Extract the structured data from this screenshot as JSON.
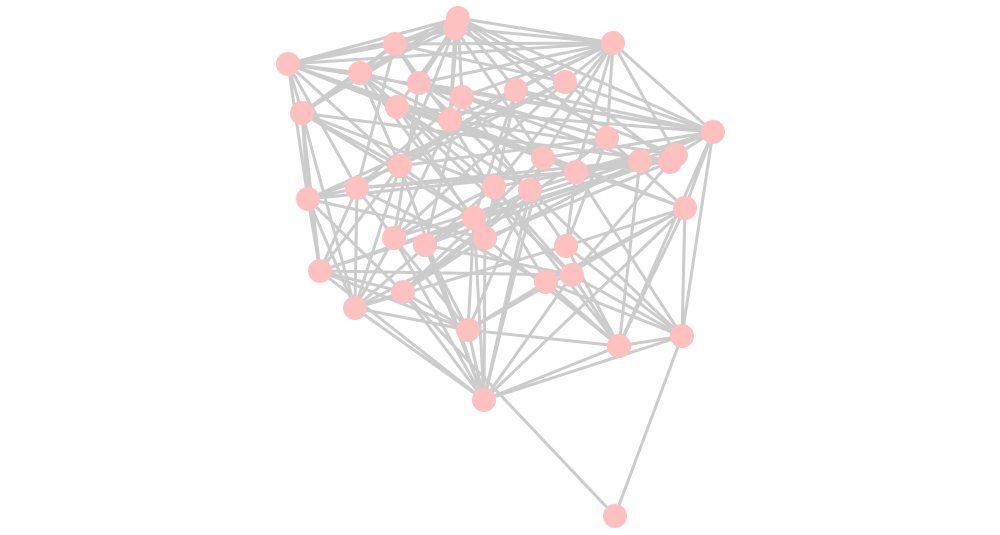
{
  "graph": {
    "type": "network",
    "node_color": "#ffc0c0",
    "edge_color": "#cccccc",
    "nodes": [
      1,
      2,
      3,
      4,
      5,
      6,
      7,
      8,
      9,
      10,
      11,
      12,
      13,
      14,
      15,
      16,
      17,
      18,
      19,
      20,
      21,
      22,
      23,
      24,
      25,
      26,
      27,
      28,
      29,
      30,
      31,
      32,
      33,
      34,
      35,
      36,
      37,
      38,
      39,
      40,
      41
    ],
    "adjacency": {
      "1": [
        3,
        4,
        5,
        6,
        7,
        8,
        9,
        10,
        12,
        13,
        14,
        15
      ],
      "2": [
        3,
        4,
        5,
        6,
        7,
        9,
        11,
        13,
        19,
        21
      ],
      "3": [
        4,
        5,
        6,
        7,
        9,
        12,
        13,
        22
      ],
      "4": [
        5,
        7,
        8,
        9,
        10,
        13,
        14,
        15,
        16,
        19,
        20,
        23
      ],
      "5": [
        6,
        11,
        12,
        13,
        14,
        19,
        21,
        22,
        25
      ],
      "6": [
        10,
        11,
        12,
        13,
        21,
        23,
        27
      ],
      "7": [
        10,
        14,
        15,
        20,
        24,
        28
      ],
      "8": [
        14,
        16,
        21,
        22,
        27,
        30
      ],
      "9": [
        14,
        18,
        21,
        25,
        28
      ],
      "10": [
        15,
        17,
        22,
        29,
        31
      ],
      "11": [
        14,
        19,
        24,
        30,
        33
      ],
      "12": [
        18,
        21,
        23,
        25,
        27,
        32,
        36
      ],
      "13": [
        16,
        20,
        26,
        28,
        34
      ],
      "14": [
        16,
        17,
        19,
        20,
        24,
        26,
        38,
        39
      ],
      "15": [
        21,
        26,
        31,
        35
      ],
      "16": [
        23,
        27,
        29,
        32
      ],
      "17": [
        22,
        28,
        36,
        38
      ],
      "18": [
        25,
        30,
        33
      ],
      "19": [
        26,
        35,
        37,
        40
      ],
      "20": [
        22,
        31,
        39
      ],
      "21": [
        25,
        27,
        32,
        36,
        40
      ],
      "22": [
        25,
        28,
        32,
        34,
        36
      ],
      "23": [
        28,
        33,
        36,
        38
      ],
      "24": [
        29,
        35,
        39,
        40
      ],
      "25": [
        30,
        32,
        35,
        36
      ],
      "26": [
        31,
        34,
        37,
        38,
        39,
        40
      ],
      "27": [
        32,
        37,
        40
      ],
      "28": [
        36,
        37,
        40
      ],
      "29": [
        33,
        37,
        40
      ],
      "30": [
        35,
        38,
        40
      ],
      "31": [
        36,
        38,
        39
      ],
      "32": [
        33,
        35,
        37,
        40
      ],
      "33": [
        38,
        39,
        40
      ],
      "34": [
        37,
        38,
        39
      ],
      "35": [
        36,
        37,
        40,
        41
      ],
      "36": [
        37,
        40
      ],
      "37": [
        38,
        40
      ],
      "38": [
        39,
        40
      ],
      "39": [
        40,
        41
      ]
    }
  }
}
